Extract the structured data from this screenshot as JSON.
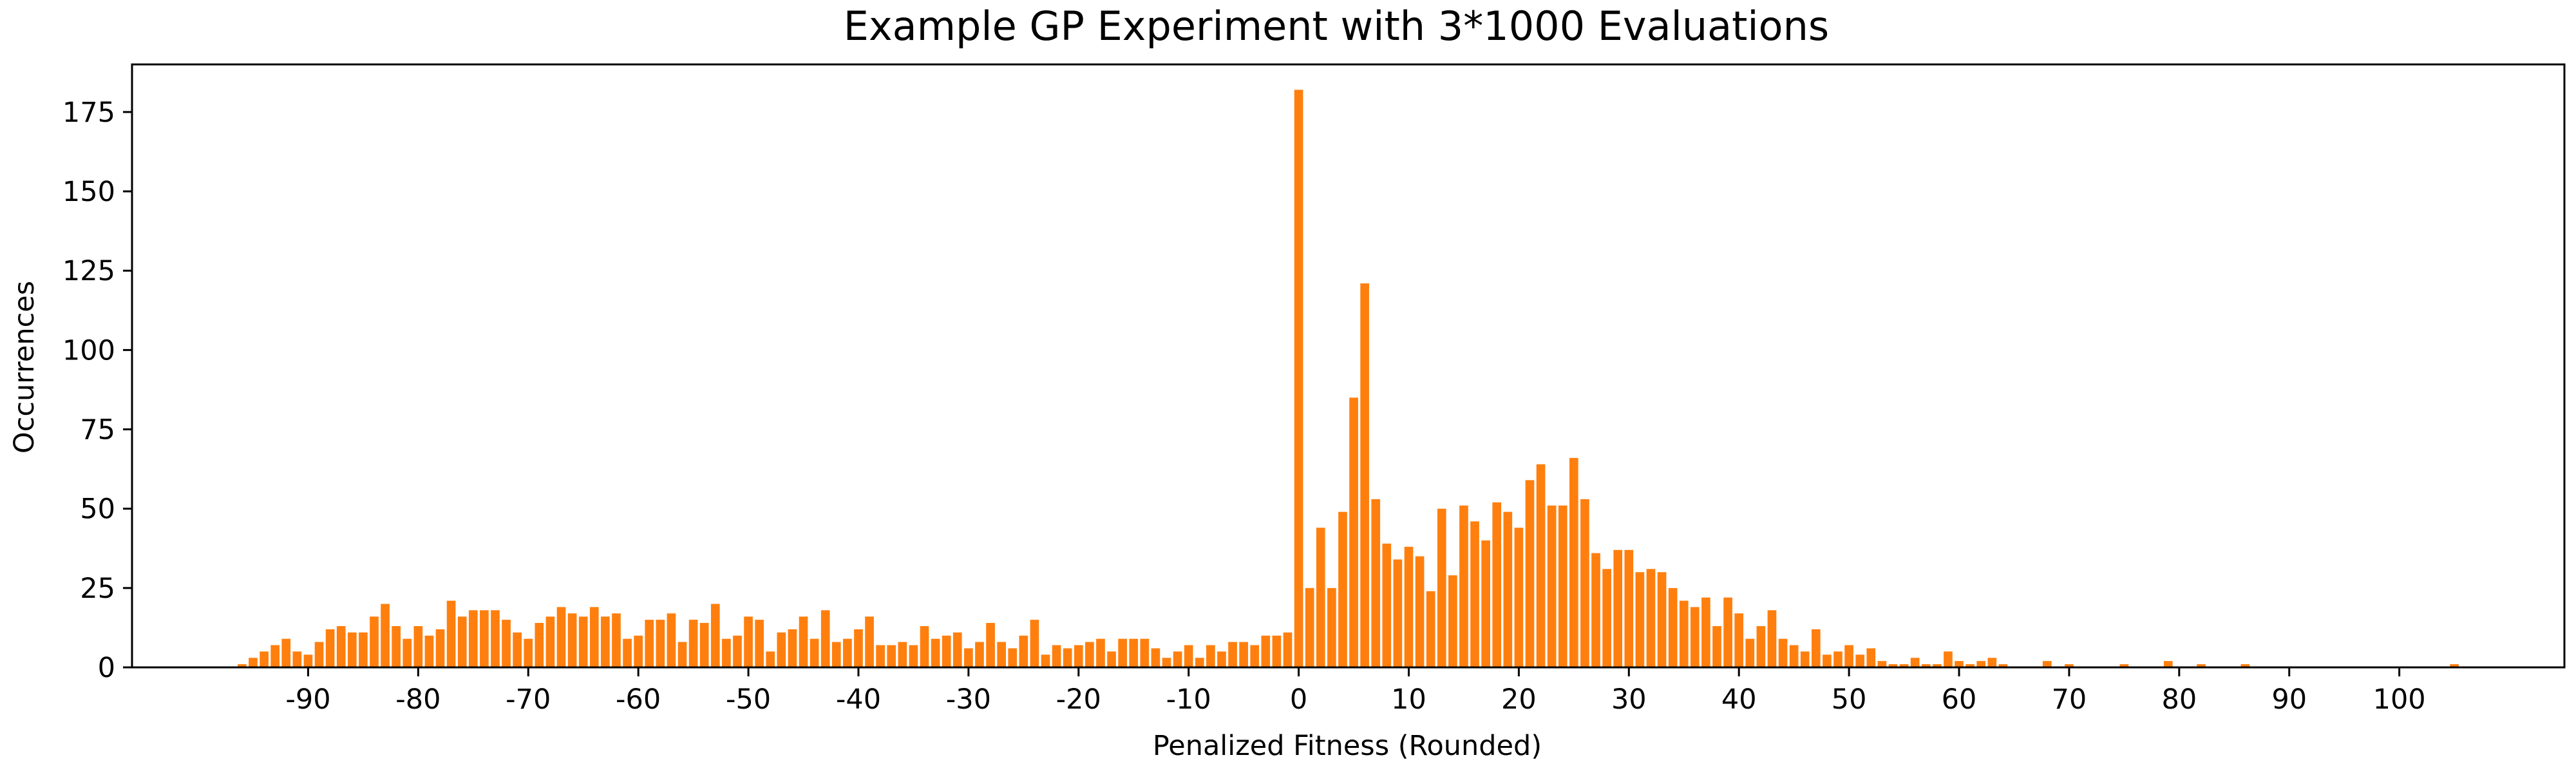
{
  "chart_data": {
    "type": "bar",
    "title": "Example GP Experiment with 3*1000 Evaluations",
    "xlabel": "Penalized Fitness (Rounded)",
    "ylabel": "Occurrences",
    "xlim": [
      -106,
      115
    ],
    "ylim": [
      0,
      190
    ],
    "xticks": [
      -90,
      -80,
      -70,
      -60,
      -50,
      -40,
      -30,
      -20,
      -10,
      0,
      10,
      20,
      30,
      40,
      50,
      60,
      70,
      80,
      90,
      100
    ],
    "yticks": [
      0,
      25,
      50,
      75,
      100,
      125,
      150,
      175
    ],
    "grid": false,
    "legend": "none",
    "bar_color": "#ff7f0e",
    "x": [
      -96,
      -95,
      -94,
      -93,
      -92,
      -91,
      -90,
      -89,
      -88,
      -87,
      -86,
      -85,
      -84,
      -83,
      -82,
      -81,
      -80,
      -79,
      -78,
      -77,
      -76,
      -75,
      -74,
      -73,
      -72,
      -71,
      -70,
      -69,
      -68,
      -67,
      -66,
      -65,
      -64,
      -63,
      -62,
      -61,
      -60,
      -59,
      -58,
      -57,
      -56,
      -55,
      -54,
      -53,
      -52,
      -51,
      -50,
      -49,
      -48,
      -47,
      -46,
      -45,
      -44,
      -43,
      -42,
      -41,
      -40,
      -39,
      -38,
      -37,
      -36,
      -35,
      -34,
      -33,
      -32,
      -31,
      -30,
      -29,
      -28,
      -27,
      -26,
      -25,
      -24,
      -23,
      -22,
      -21,
      -20,
      -19,
      -18,
      -17,
      -16,
      -15,
      -14,
      -13,
      -12,
      -11,
      -10,
      -9,
      -8,
      -7,
      -6,
      -5,
      -4,
      -3,
      -2,
      -1,
      0,
      1,
      2,
      3,
      4,
      5,
      6,
      7,
      8,
      9,
      10,
      11,
      12,
      13,
      14,
      15,
      16,
      17,
      18,
      19,
      20,
      21,
      22,
      23,
      24,
      25,
      26,
      27,
      28,
      29,
      30,
      31,
      32,
      33,
      34,
      35,
      36,
      37,
      38,
      39,
      40,
      41,
      42,
      43,
      44,
      45,
      46,
      47,
      48,
      49,
      50,
      51,
      52,
      53,
      54,
      55,
      56,
      57,
      58,
      59,
      60,
      61,
      62,
      63,
      64,
      68,
      70,
      75,
      79,
      82,
      86,
      105
    ],
    "values": [
      1,
      3,
      5,
      7,
      9,
      5,
      4,
      8,
      12,
      13,
      11,
      11,
      16,
      20,
      13,
      9,
      13,
      10,
      12,
      21,
      16,
      18,
      18,
      18,
      15,
      11,
      9,
      14,
      16,
      19,
      17,
      16,
      19,
      16,
      17,
      9,
      10,
      15,
      15,
      17,
      8,
      15,
      14,
      20,
      9,
      10,
      16,
      15,
      5,
      11,
      12,
      16,
      9,
      18,
      8,
      9,
      12,
      16,
      7,
      7,
      8,
      7,
      13,
      9,
      10,
      11,
      6,
      8,
      14,
      8,
      6,
      10,
      15,
      4,
      7,
      6,
      7,
      8,
      9,
      5,
      9,
      9,
      9,
      6,
      3,
      5,
      7,
      3,
      7,
      5,
      8,
      8,
      7,
      10,
      10,
      11,
      182,
      25,
      44,
      25,
      49,
      85,
      121,
      53,
      39,
      34,
      38,
      35,
      24,
      50,
      29,
      51,
      46,
      40,
      52,
      49,
      44,
      59,
      64,
      51,
      51,
      66,
      53,
      36,
      31,
      37,
      37,
      30,
      31,
      30,
      25,
      21,
      19,
      22,
      13,
      22,
      17,
      9,
      13,
      18,
      9,
      7,
      5,
      12,
      4,
      5,
      7,
      4,
      6,
      2,
      1,
      1,
      3,
      1,
      1,
      5,
      2,
      1,
      2,
      3,
      1,
      2,
      1,
      1,
      2,
      1,
      1,
      1
    ]
  }
}
